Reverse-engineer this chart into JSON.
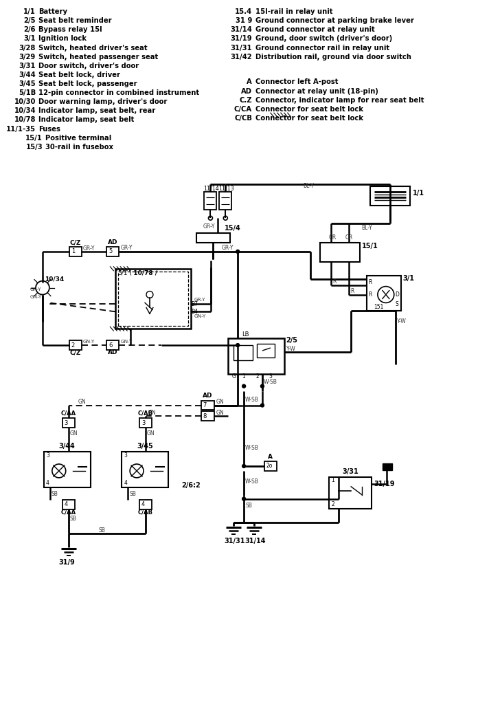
{
  "bg_color": "#ffffff",
  "legend_left": [
    [
      "1/1",
      "Battery"
    ],
    [
      "2/5",
      "Seat belt reminder"
    ],
    [
      "2/6",
      "Bypass relay 15I"
    ],
    [
      "3/1",
      "Ignition lock"
    ],
    [
      "3/28",
      "Switch, heated driver's seat"
    ],
    [
      "3/29",
      "Switch, heated passenger seat"
    ],
    [
      "3/31",
      "Door switch, driver's door"
    ],
    [
      "3/44",
      "Seat belt lock, driver"
    ],
    [
      "3/45",
      "Seat belt lock, passenger"
    ],
    [
      "5/1B",
      "12-pin connector in combined instrument"
    ],
    [
      "10/30",
      "Door warning lamp, driver's door"
    ],
    [
      "10/34",
      "Indicator lamp, seat belt, rear"
    ],
    [
      "10/78",
      "Indicator lamp, seat belt"
    ],
    [
      "11/1-35",
      "Fuses"
    ],
    [
      "15/1",
      "Positive terminal"
    ],
    [
      "15/3",
      "30-rail in fusebox"
    ]
  ],
  "legend_right_top": [
    [
      "15.4",
      "15I-rail in relay unit"
    ],
    [
      "31 9",
      "Ground connector at parking brake lever"
    ],
    [
      "31/14",
      "Ground connector at relay unit"
    ],
    [
      "31/19",
      "Ground, door switch (driver's door)"
    ],
    [
      "31/31",
      "Ground connector rail in relay unit"
    ],
    [
      "31/42",
      "Distribution rail, ground via door switch"
    ]
  ],
  "legend_right_bot": [
    [
      "A",
      "Connector left A-post"
    ],
    [
      "AD",
      "Connector at relay unit (18-pin)"
    ],
    [
      "C.Z",
      "Connector, indicator lamp for rear seat belt"
    ],
    [
      "C/CA",
      "Connector for seat belt lock"
    ],
    [
      "C/CB",
      "Connector for seat belt lock"
    ]
  ]
}
